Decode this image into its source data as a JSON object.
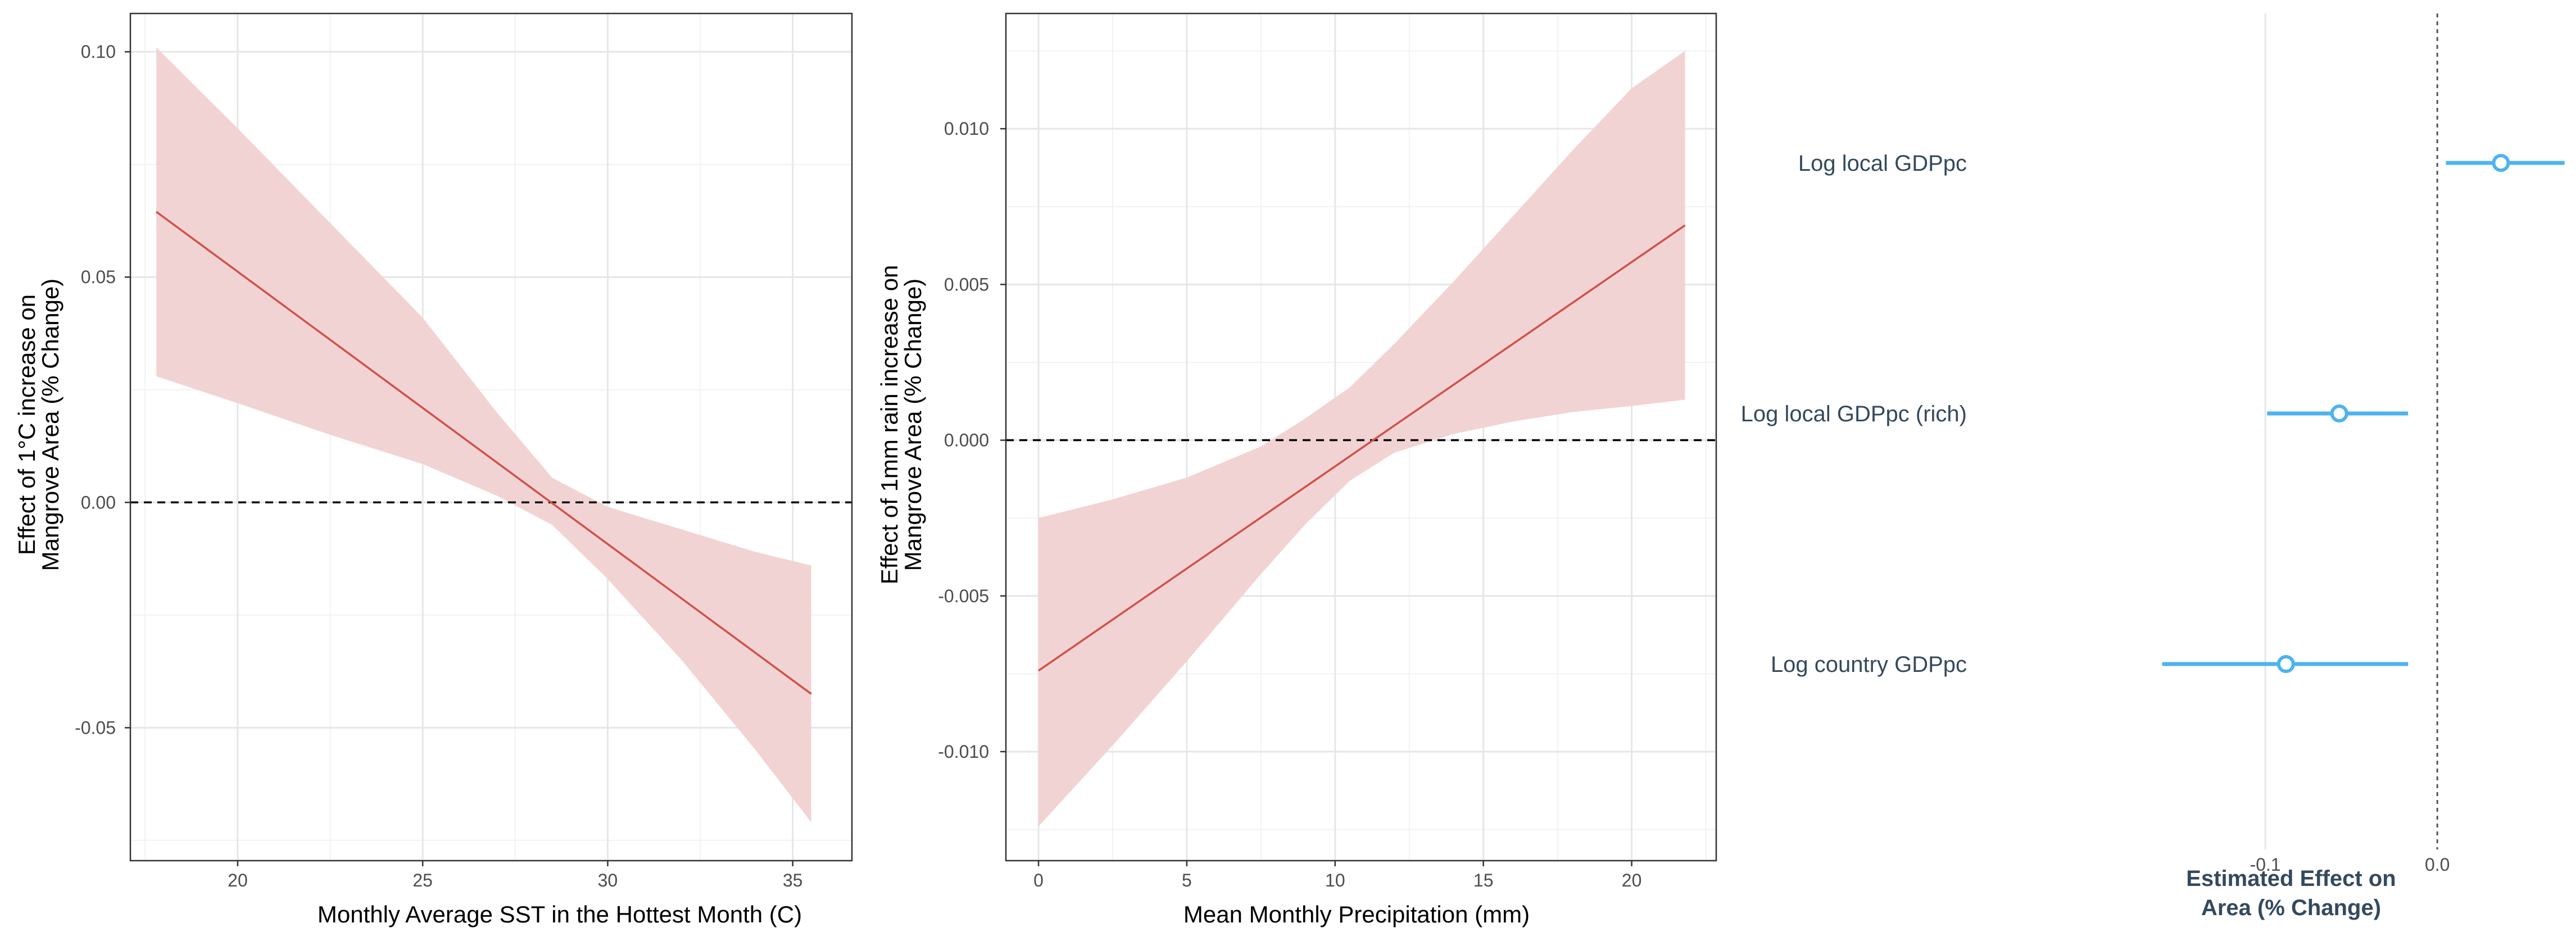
{
  "colors": {
    "line": "#d0504a",
    "ribbon": "#f2d3d4",
    "forest": "#4db3f0",
    "label": "#34495e"
  },
  "chart_data": [
    {
      "type": "line",
      "title": "",
      "xlabel": "Monthly Average SST in the Hottest Month (C)",
      "ylabel": [
        "Effect of 1°C increase on",
        "Mangrove Area (% Change)"
      ],
      "xlim": [
        17.1,
        36.6
      ],
      "ylim": [
        -0.0795,
        0.1085
      ],
      "xticks": [
        20,
        25,
        30,
        35
      ],
      "xtick_labels": [
        "20",
        "25",
        "30",
        "35"
      ],
      "yticks": [
        -0.05,
        0.0,
        0.05,
        0.1
      ],
      "ytick_labels": [
        "-0.05",
        "0.00",
        "0.05",
        "0.10"
      ],
      "grid": true,
      "reference_line": 0,
      "line": {
        "x": [
          17.8,
          35.5
        ],
        "y": [
          0.0645,
          -0.0425
        ]
      },
      "band": {
        "x": [
          17.8,
          20,
          22.5,
          25,
          27,
          28.5,
          30,
          32,
          34,
          35.5
        ],
        "lower": [
          0.028,
          0.022,
          0.015,
          0.0085,
          0.0015,
          -0.005,
          -0.017,
          -0.035,
          -0.055,
          -0.071
        ],
        "upper": [
          0.101,
          0.083,
          0.062,
          0.041,
          0.02,
          0.0055,
          -0.001,
          -0.006,
          -0.011,
          -0.014
        ]
      }
    },
    {
      "type": "line",
      "title": "",
      "xlabel": "Mean Monthly Precipitation (mm)",
      "ylabel": [
        "Effect of 1mm rain increase on",
        "Mangrove Area (% Change)"
      ],
      "xlim": [
        -1.1,
        22.85
      ],
      "ylim": [
        -0.0135,
        0.0137
      ],
      "xticks": [
        0,
        5,
        10,
        15,
        20
      ],
      "xtick_labels": [
        "0",
        "5",
        "10",
        "15",
        "20"
      ],
      "yticks": [
        -0.01,
        -0.005,
        0.0,
        0.005,
        0.01
      ],
      "ytick_labels": [
        "-0.010",
        "-0.005",
        "0.000",
        "0.005",
        "0.010"
      ],
      "grid": true,
      "reference_line": 0,
      "line": {
        "x": [
          0,
          21.8
        ],
        "y": [
          -0.0074,
          0.0069
        ]
      },
      "band": {
        "x": [
          0,
          2.5,
          5,
          7.5,
          9,
          10.5,
          12,
          14,
          16,
          18,
          20,
          21.8
        ],
        "lower": [
          -0.0124,
          -0.0098,
          -0.0071,
          -0.0043,
          -0.0027,
          -0.0013,
          -0.0004,
          0.0002,
          0.0006,
          0.0009,
          0.0011,
          0.0013
        ],
        "upper": [
          -0.0025,
          -0.0019,
          -0.0012,
          -0.0002,
          0.0007,
          0.0017,
          0.0031,
          0.0051,
          0.0072,
          0.0093,
          0.0113,
          0.0125
        ]
      }
    },
    {
      "type": "forest",
      "title": "",
      "xlabel": [
        "Estimated Effect on",
        "Area (% Change)"
      ],
      "xlim": [
        -0.235,
        0.0728
      ],
      "xticks": [
        -0.1,
        0.0
      ],
      "xtick_labels": [
        "-0.1",
        "0.0"
      ],
      "reference_line": 0,
      "terms": [
        {
          "label": "Log local GDPpc",
          "estimate": 0.037,
          "ci": [
            0.005,
            0.074
          ]
        },
        {
          "label": "Log local GDPpc (rich)",
          "estimate": -0.057,
          "ci": [
            -0.099,
            -0.017
          ]
        },
        {
          "label": "Log country GDPpc",
          "estimate": -0.088,
          "ci": [
            -0.16,
            -0.017
          ]
        }
      ]
    }
  ]
}
